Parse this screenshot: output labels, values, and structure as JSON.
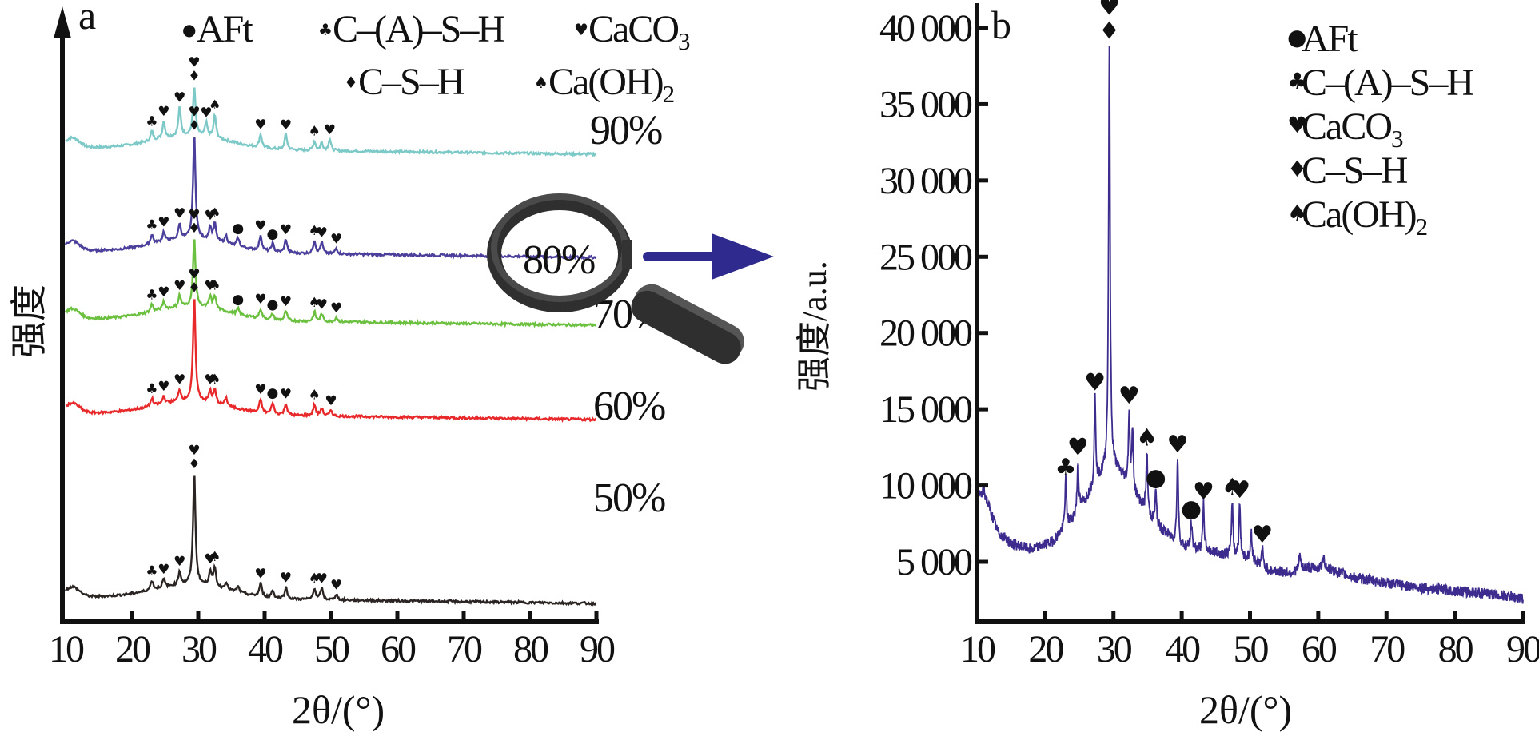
{
  "chart_data": [
    {
      "panel": "a",
      "type": "line",
      "title": "",
      "xlabel": "2θ/(°)",
      "ylabel": "强度",
      "xlim": [
        10,
        90
      ],
      "xticks": [
        10,
        20,
        30,
        40,
        50,
        60,
        70,
        80,
        90
      ],
      "y_ticks_shown": false,
      "legend": {
        "placement": "top",
        "entries": [
          {
            "symbol": "●",
            "label": "AFt"
          },
          {
            "symbol": "♣",
            "label": "C–(A)–S–H"
          },
          {
            "symbol": "♥",
            "label": "CaCO₃"
          },
          {
            "symbol": "♦",
            "label": "C–S–H"
          },
          {
            "symbol": "♠",
            "label": "Ca(OH)₂"
          }
        ]
      },
      "series": [
        {
          "name": "90%",
          "color": "#7cc9c8",
          "offset": 4.0,
          "main_peak": 1.1,
          "peaks": [
            [
              23.0,
              0.25,
              "♣"
            ],
            [
              24.8,
              0.45,
              "♥"
            ],
            [
              27.2,
              0.75,
              "♥"
            ],
            [
              29.4,
              1.3,
              "♦♥"
            ],
            [
              31.2,
              0.35,
              "♥"
            ],
            [
              32.5,
              0.6,
              "♠"
            ],
            [
              39.4,
              0.35,
              "♥"
            ],
            [
              43.2,
              0.4,
              "♥"
            ],
            [
              47.5,
              0.25,
              "♠"
            ],
            [
              48.6,
              0.2,
              ""
            ],
            [
              49.8,
              0.3,
              "♥"
            ]
          ]
        },
        {
          "name": "80%",
          "color": "#4a3f9a",
          "offset": 3.0,
          "main_peak": 2.5,
          "peaks": [
            [
              23.0,
              0.25,
              "♣"
            ],
            [
              24.8,
              0.25,
              "♥"
            ],
            [
              27.2,
              0.4,
              "♥"
            ],
            [
              29.4,
              2.7,
              "♦♥"
            ],
            [
              31.8,
              0.35,
              "♥"
            ],
            [
              32.5,
              0.45,
              "♠"
            ],
            [
              34.2,
              0.2,
              ""
            ],
            [
              36.0,
              0.22,
              "●"
            ],
            [
              39.4,
              0.4,
              "♥"
            ],
            [
              41.2,
              0.22,
              "●"
            ],
            [
              43.2,
              0.35,
              "♥"
            ],
            [
              47.5,
              0.35,
              "♠"
            ],
            [
              48.6,
              0.3,
              "♥"
            ],
            [
              50.8,
              0.15,
              "♥"
            ]
          ]
        },
        {
          "name": "70%",
          "color": "#6cc040",
          "offset": 2.0,
          "main_peak": 1.6,
          "peaks": [
            [
              23.0,
              0.2,
              "♣"
            ],
            [
              24.8,
              0.2,
              "♥"
            ],
            [
              27.2,
              0.3,
              "♥"
            ],
            [
              29.4,
              1.8,
              "♦♥"
            ],
            [
              31.8,
              0.3,
              "♥"
            ],
            [
              32.5,
              0.35,
              "♠"
            ],
            [
              36.0,
              0.15,
              "●"
            ],
            [
              39.4,
              0.25,
              "♥"
            ],
            [
              41.2,
              0.15,
              "●"
            ],
            [
              43.2,
              0.25,
              "♥"
            ],
            [
              47.5,
              0.25,
              "♠"
            ],
            [
              48.6,
              0.2,
              "♥"
            ],
            [
              50.8,
              0.12,
              "♥"
            ]
          ]
        },
        {
          "name": "60%",
          "color": "#e8292c",
          "offset": 1.0,
          "main_peak": 2.5,
          "peaks": [
            [
              23.0,
              0.2,
              "♣"
            ],
            [
              24.8,
              0.2,
              "♥"
            ],
            [
              27.2,
              0.3,
              "♥"
            ],
            [
              29.4,
              2.7,
              "♦♥"
            ],
            [
              31.8,
              0.3,
              "♥"
            ],
            [
              32.5,
              0.35,
              "♠"
            ],
            [
              34.2,
              0.2,
              ""
            ],
            [
              39.4,
              0.35,
              "♥"
            ],
            [
              41.2,
              0.3,
              "●"
            ],
            [
              43.2,
              0.3,
              "♥"
            ],
            [
              47.5,
              0.3,
              "♠"
            ],
            [
              48.6,
              0.2,
              ""
            ],
            [
              50.0,
              0.15,
              "♥"
            ]
          ]
        },
        {
          "name": "50%",
          "color": "#2a2422",
          "offset": 0.0,
          "main_peak": 2.7,
          "peaks": [
            [
              23.0,
              0.25,
              "♣"
            ],
            [
              24.8,
              0.22,
              "♥"
            ],
            [
              27.2,
              0.35,
              "♥"
            ],
            [
              29.4,
              2.9,
              "♦♥"
            ],
            [
              31.8,
              0.4,
              "♥"
            ],
            [
              32.5,
              0.5,
              "♠"
            ],
            [
              34.2,
              0.2,
              ""
            ],
            [
              36.0,
              0.15,
              ""
            ],
            [
              39.4,
              0.35,
              "♥"
            ],
            [
              41.2,
              0.2,
              ""
            ],
            [
              43.2,
              0.3,
              "♥"
            ],
            [
              47.5,
              0.3,
              "♠"
            ],
            [
              48.6,
              0.3,
              "♥"
            ],
            [
              50.8,
              0.15,
              "♥"
            ]
          ]
        }
      ],
      "series_labels": [
        "90%",
        "80%",
        "70%",
        "60%",
        "50%"
      ],
      "inset_label": "80%"
    },
    {
      "panel": "b",
      "type": "line",
      "title": "",
      "xlabel": "2θ/(°)",
      "ylabel": "强度/a.u.",
      "xlim": [
        10,
        90
      ],
      "ylim": [
        2000,
        41000
      ],
      "xticks": [
        10,
        20,
        30,
        40,
        50,
        60,
        70,
        80,
        90
      ],
      "yticks": [
        5000,
        10000,
        15000,
        20000,
        25000,
        30000,
        35000,
        40000
      ],
      "ytick_labels": [
        "5 000",
        "10 000",
        "15 000",
        "20 000",
        "25 000",
        "30 000",
        "35 000",
        "40 000"
      ],
      "legend": {
        "placement": "top-right",
        "entries": [
          {
            "symbol": "●",
            "label": "AFt"
          },
          {
            "symbol": "♣",
            "label": "C–(A)–S–H"
          },
          {
            "symbol": "♥",
            "label": "CaCO₃"
          },
          {
            "symbol": "♦",
            "label": "C–S–H"
          },
          {
            "symbol": "♠",
            "label": "Ca(OH)₂"
          }
        ]
      },
      "series": [
        {
          "name": "80%",
          "color": "#3d2c8d",
          "baseline": [
            [
              10,
              9200
            ],
            [
              11,
              9600
            ],
            [
              13,
              7000
            ],
            [
              15,
              6200
            ],
            [
              18,
              5800
            ],
            [
              21,
              6300
            ],
            [
              24,
              7800
            ],
            [
              27,
              9800
            ],
            [
              29.5,
              11500
            ],
            [
              31,
              10800
            ],
            [
              33,
              9500
            ],
            [
              36,
              7500
            ],
            [
              40,
              6000
            ],
            [
              45,
              5600
            ],
            [
              50,
              5200
            ],
            [
              53,
              4400
            ],
            [
              56,
              4300
            ],
            [
              58,
              4600
            ],
            [
              61,
              4600
            ],
            [
              65,
              4000
            ],
            [
              70,
              3600
            ],
            [
              75,
              3300
            ],
            [
              80,
              3100
            ],
            [
              85,
              2900
            ],
            [
              90,
              2600
            ]
          ],
          "peaks": [
            [
              23.0,
              3000,
              "♣"
            ],
            [
              24.8,
              3300,
              "♥"
            ],
            [
              27.3,
              5800,
              "♥"
            ],
            [
              29.4,
              27500,
              "♦♥"
            ],
            [
              32.3,
              4800,
              "♥"
            ],
            [
              32.8,
              3800,
              ""
            ],
            [
              34.9,
              4000,
              "♠"
            ],
            [
              36.2,
              2200,
              "●"
            ],
            [
              39.4,
              5600,
              "♥"
            ],
            [
              41.4,
              1700,
              "●"
            ],
            [
              43.2,
              3000,
              "♥"
            ],
            [
              47.4,
              3600,
              "♠"
            ],
            [
              48.5,
              3500,
              "♥"
            ],
            [
              50.2,
              1800,
              ""
            ],
            [
              51.8,
              1200,
              "♥"
            ],
            [
              57.3,
              1000,
              ""
            ],
            [
              60.8,
              1000,
              ""
            ]
          ]
        }
      ]
    }
  ],
  "panel_labels": {
    "a": "a",
    "b": "b"
  },
  "legend_a": {
    "row1": [
      {
        "symbol": "●",
        "label": "AFt"
      },
      {
        "symbol": "♣",
        "label": "C–(A)–S–H"
      },
      {
        "symbol": "♥",
        "label": "CaCO",
        "sub": "3"
      }
    ],
    "row2": [
      {
        "symbol": "♦",
        "label": "C–S–H"
      },
      {
        "symbol": "♠",
        "label": "Ca(OH)",
        "sub": "2"
      }
    ]
  },
  "legend_b": [
    {
      "symbol": "●",
      "label": "AFt"
    },
    {
      "symbol": "♣",
      "label": "C–(A)–S–H"
    },
    {
      "symbol": "♥",
      "label": "CaCO",
      "sub": "3"
    },
    {
      "symbol": "♦",
      "label": "C–S–H"
    },
    {
      "symbol": "♠",
      "label": "Ca(OH)",
      "sub": "2"
    }
  ],
  "colors": {
    "arrow": "#2e2a8e",
    "magnifier": "#3a3a3a"
  }
}
